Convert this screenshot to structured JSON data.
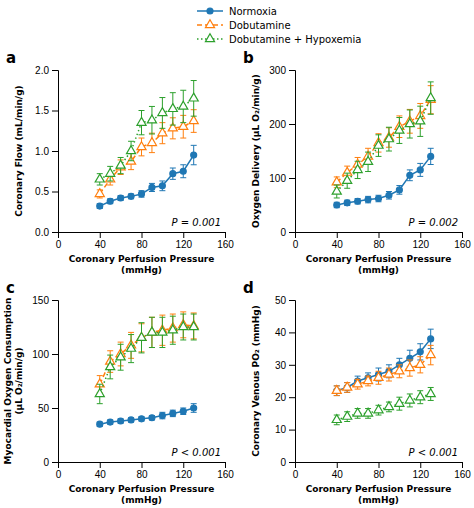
{
  "chart_data": [
    {
      "type": "line",
      "title": "a",
      "legend": "top",
      "grid": false,
      "x_label": "Coronary Perfusion Pressure\n(mmHg)",
      "y_label": "Coronary Flow (mL/min/g)",
      "annotations": [
        "P = 0.001"
      ],
      "x": [
        40,
        50,
        60,
        70,
        80,
        90,
        100,
        110,
        120,
        130
      ],
      "xlim": [
        0,
        160
      ],
      "xticks": [
        0,
        40,
        80,
        120,
        160
      ],
      "ylim": [
        0,
        2.0
      ],
      "yticks": [
        {
          "value": 0,
          "label": "0.0"
        },
        0.5,
        {
          "value": 1,
          "label": "1.0"
        },
        1.5,
        {
          "value": 2,
          "label": "2.0"
        }
      ],
      "series": [
        {
          "name": "Normoxia",
          "marker": "circle",
          "line_style": "solid",
          "values": [
            0.32,
            0.38,
            0.42,
            0.44,
            0.47,
            0.55,
            0.57,
            0.72,
            0.75,
            0.95
          ],
          "errors": [
            0.03,
            0.03,
            0.03,
            0.03,
            0.04,
            0.05,
            0.06,
            0.07,
            0.08,
            0.12
          ]
        },
        {
          "name": "Dobutamine",
          "marker": "triangle",
          "line_style": "dashed",
          "values": [
            0.47,
            0.65,
            0.8,
            0.87,
            1.05,
            1.1,
            1.22,
            1.28,
            1.3,
            1.37
          ],
          "errors": [
            0.05,
            0.07,
            0.09,
            0.1,
            0.11,
            0.12,
            0.13,
            0.13,
            0.14,
            0.14
          ]
        },
        {
          "name": "Dobutamine + Hypoxemia",
          "marker": "triangle",
          "line_style": "dotted",
          "values": [
            0.65,
            0.72,
            0.82,
            1.0,
            1.35,
            1.38,
            1.47,
            1.52,
            1.55,
            1.65
          ],
          "errors": [
            0.07,
            0.09,
            0.1,
            0.12,
            0.15,
            0.17,
            0.19,
            0.2,
            0.2,
            0.22
          ]
        }
      ]
    },
    {
      "type": "line",
      "title": "b",
      "grid": false,
      "x_label": "Coronary Perfusion Pressure\n(mmHg)",
      "y_label": "Oxygen Delivery (μL O₂/min/g)",
      "annotations": [
        "P = 0.002"
      ],
      "x": [
        40,
        50,
        60,
        70,
        80,
        90,
        100,
        110,
        120,
        130
      ],
      "xlim": [
        0,
        160
      ],
      "xticks": [
        0,
        40,
        80,
        120,
        160
      ],
      "ylim": [
        0,
        300
      ],
      "yticks": [
        0,
        100,
        200,
        300
      ],
      "series": [
        {
          "marker": "circle",
          "line_style": "solid",
          "values": [
            50,
            54,
            57,
            60,
            62,
            68,
            78,
            105,
            115,
            140
          ],
          "errors": [
            5,
            5,
            5,
            6,
            6,
            7,
            8,
            10,
            12,
            15
          ]
        },
        {
          "marker": "triangle",
          "line_style": "dashed",
          "values": [
            92,
            110,
            125,
            140,
            165,
            175,
            195,
            205,
            215,
            245
          ],
          "errors": [
            10,
            12,
            13,
            15,
            17,
            18,
            20,
            22,
            23,
            26
          ]
        },
        {
          "marker": "triangle",
          "line_style": "dotted",
          "values": [
            75,
            95,
            115,
            130,
            160,
            172,
            188,
            200,
            205,
            248
          ],
          "errors": [
            12,
            14,
            16,
            18,
            20,
            22,
            24,
            26,
            28,
            30
          ]
        }
      ]
    },
    {
      "type": "line",
      "title": "c",
      "grid": false,
      "x_label": "Coronary Perfusion Pressure\n(mmHg)",
      "y_label": "Myocardial Oxygen Consumption\n(μL O₂/min/g)",
      "annotations": [
        "P < 0.001"
      ],
      "x": [
        40,
        50,
        60,
        70,
        80,
        90,
        100,
        110,
        120,
        130
      ],
      "xlim": [
        0,
        160
      ],
      "xticks": [
        0,
        40,
        80,
        120,
        160
      ],
      "ylim": [
        0,
        150
      ],
      "yticks": [
        0,
        50,
        100,
        150
      ],
      "series": [
        {
          "marker": "circle",
          "line_style": "solid",
          "values": [
            35,
            37,
            38,
            39,
            40,
            41,
            43,
            45,
            47,
            50
          ],
          "errors": [
            2,
            2,
            2,
            2,
            2,
            2,
            3,
            3,
            3,
            4
          ]
        },
        {
          "marker": "triangle",
          "line_style": "dashed",
          "values": [
            72,
            93,
            100,
            108,
            115,
            120,
            122,
            124,
            127,
            126
          ],
          "errors": [
            8,
            10,
            11,
            12,
            13,
            14,
            14,
            13,
            12,
            12
          ]
        },
        {
          "marker": "triangle",
          "line_style": "dotted",
          "values": [
            63,
            88,
            97,
            105,
            115,
            120,
            120,
            122,
            125,
            125
          ],
          "errors": [
            9,
            11,
            12,
            13,
            14,
            14,
            14,
            13,
            12,
            12
          ]
        }
      ]
    },
    {
      "type": "line",
      "title": "d",
      "grid": false,
      "x_label": "Coronary Perfusion Pressure\n(mmHg)",
      "y_label": "Coronary Venous PO₂ (mmHg)",
      "annotations": [
        "P < 0.001"
      ],
      "x": [
        40,
        50,
        60,
        70,
        80,
        90,
        100,
        110,
        120,
        130
      ],
      "xlim": [
        0,
        160
      ],
      "xticks": [
        0,
        40,
        80,
        120,
        160
      ],
      "ylim": [
        0,
        50
      ],
      "yticks": [
        0,
        10,
        20,
        30,
        40,
        50
      ],
      "series": [
        {
          "marker": "circle",
          "line_style": "solid",
          "values": [
            22,
            23,
            25,
            26,
            27,
            28,
            30,
            32,
            34,
            38
          ],
          "errors": [
            1.5,
            1.5,
            1.5,
            1.5,
            2,
            2,
            2,
            2.5,
            2.5,
            3
          ]
        },
        {
          "marker": "triangle",
          "line_style": "dashed",
          "values": [
            22,
            23,
            24,
            25,
            26,
            27,
            28,
            29,
            30,
            33
          ],
          "errors": [
            1.5,
            1.5,
            1.5,
            1.5,
            2,
            2,
            2,
            2.5,
            2.5,
            3
          ]
        },
        {
          "marker": "triangle",
          "line_style": "dotted",
          "values": [
            13,
            14,
            15,
            15,
            16,
            17,
            18,
            19,
            20,
            21
          ],
          "errors": [
            1.5,
            1.5,
            1.5,
            1.5,
            1.5,
            1.5,
            2,
            2,
            2,
            2
          ]
        }
      ]
    }
  ]
}
